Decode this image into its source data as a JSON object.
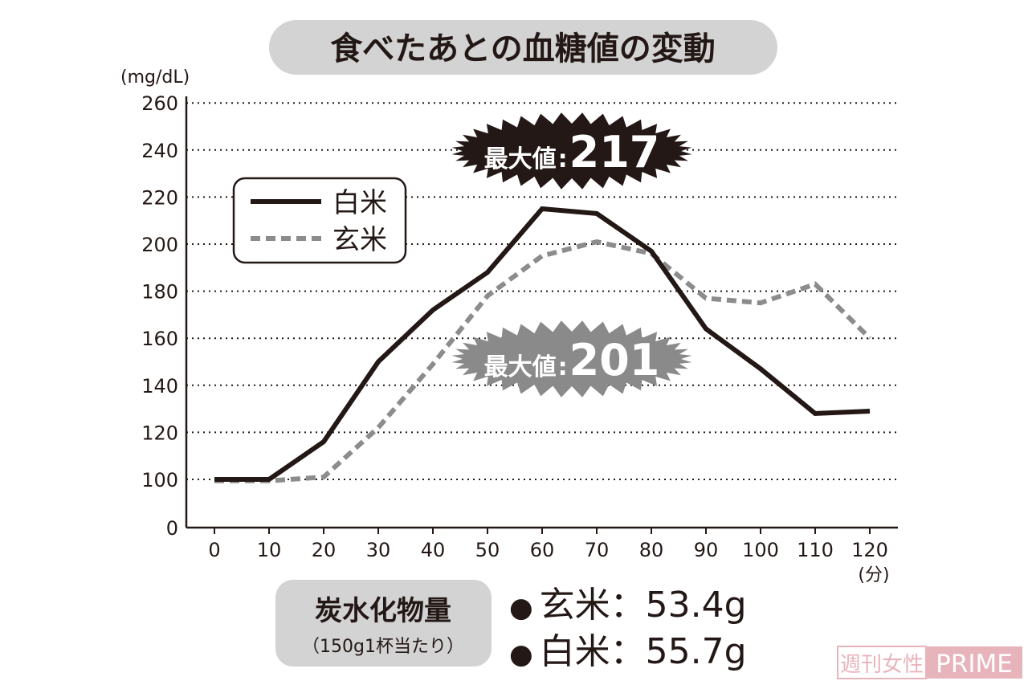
{
  "chart_data": {
    "type": "line",
    "title": "食べたあとの血糖値の変動",
    "ylabel": "(mg/dL)",
    "xlabel": "(分)",
    "x": [
      0,
      10,
      20,
      30,
      40,
      50,
      60,
      70,
      80,
      90,
      100,
      110,
      120
    ],
    "x_ticks": [
      "0",
      "10",
      "20",
      "30",
      "40",
      "50",
      "60",
      "70",
      "80",
      "90",
      "100",
      "110",
      "120"
    ],
    "y_ticks": [
      "0",
      "100",
      "120",
      "140",
      "160",
      "180",
      "200",
      "220",
      "240",
      "260"
    ],
    "ylim": [
      0,
      260
    ],
    "y_axis_break": [
      0,
      100
    ],
    "grid": "horizontal dotted",
    "legend_placement": "top-left",
    "series": [
      {
        "name": "白米",
        "style": "solid",
        "color": "#231815",
        "values": [
          100,
          100,
          116,
          150,
          172,
          188,
          215,
          213,
          197,
          164,
          147,
          128,
          129
        ]
      },
      {
        "name": "玄米",
        "style": "dashed",
        "color": "#8c8c8c",
        "values": [
          97,
          97,
          101,
          122,
          149,
          178,
          195,
          201,
          196,
          177,
          175,
          183,
          160
        ]
      }
    ],
    "annotations": [
      {
        "label": "最大値",
        "sep": ":",
        "value": "217",
        "color": "#231815"
      },
      {
        "label": "最大値",
        "sep": ":",
        "value": "201",
        "color": "#8a8a8a"
      }
    ]
  },
  "footer": {
    "box_title": "炭水化物量",
    "box_sub": "（150g1杯当たり）",
    "items": [
      {
        "bullet": "●",
        "text": "玄米：53.4g"
      },
      {
        "bullet": "●",
        "text": "白米：55.7g"
      }
    ]
  },
  "watermark": {
    "left": "週刊女性",
    "right": "PRIME",
    "color": "#e8b4bc"
  }
}
